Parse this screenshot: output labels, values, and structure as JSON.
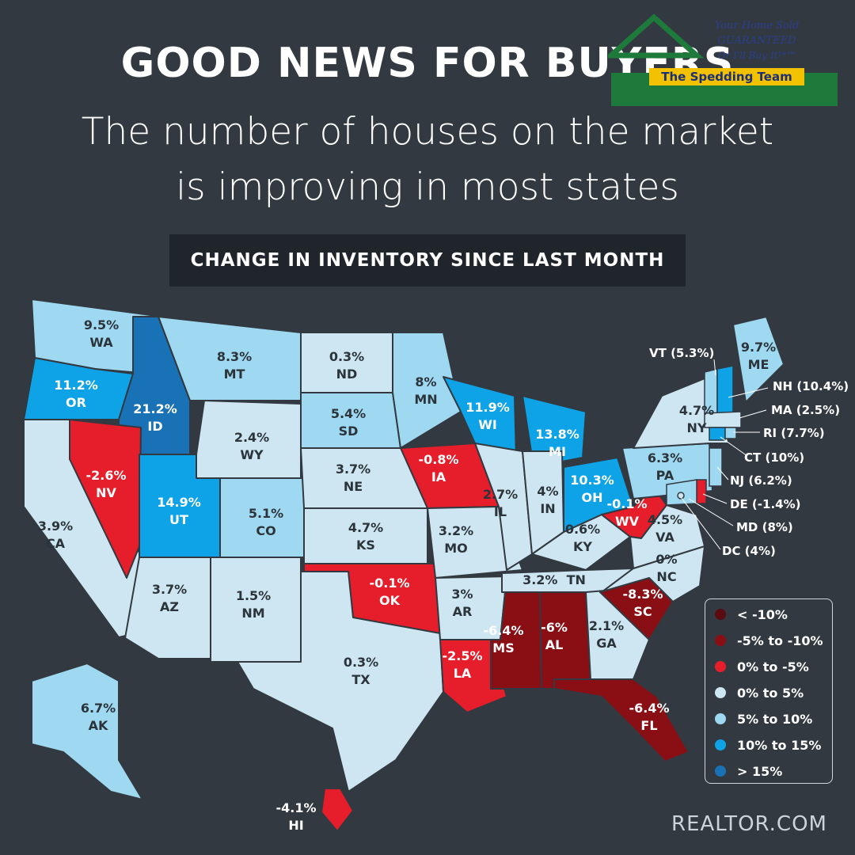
{
  "header": {
    "title": "GOOD NEWS FOR BUYERS",
    "subtitle_line1": "The number of houses on the market",
    "subtitle_line2": "is improving in most states"
  },
  "banner": {
    "text": "CHANGE IN INVENTORY SINCE LAST MONTH"
  },
  "logo": {
    "line1": "Your Home Sold",
    "line2": "GUARANTEED",
    "line3": "Or I'll Buy It!*™",
    "team": "The Spedding Team"
  },
  "colors": {
    "lt_minus10": "#5a0c10",
    "m5_to_m10": "#8a0f14",
    "z_to_m5": "#e61e2b",
    "z_to_5": "#cde6f2",
    "p5_to_10": "#9fd8f1",
    "p10_to_15": "#0ea2e6",
    "gt_15": "#1a72b6"
  },
  "legend": [
    {
      "label": "< -10%",
      "color": "#5a0c10"
    },
    {
      "label": "-5% to -10%",
      "color": "#8a0f14"
    },
    {
      "label": "0% to -5%",
      "color": "#e61e2b"
    },
    {
      "label": "0% to 5%",
      "color": "#cde6f2"
    },
    {
      "label": "5% to 10%",
      "color": "#9fd8f1"
    },
    {
      "label": "10% to 15%",
      "color": "#0ea2e6"
    },
    {
      "label": "> 15%",
      "color": "#1a72b6"
    }
  ],
  "states": {
    "WA": {
      "value": "9.5%",
      "abbr": "WA"
    },
    "OR": {
      "value": "11.2%",
      "abbr": "OR"
    },
    "CA": {
      "value": "3.9%",
      "abbr": "CA"
    },
    "ID": {
      "value": "21.2%",
      "abbr": "ID"
    },
    "NV": {
      "value": "-2.6%",
      "abbr": "NV"
    },
    "MT": {
      "value": "8.3%",
      "abbr": "MT"
    },
    "WY": {
      "value": "2.4%",
      "abbr": "WY"
    },
    "UT": {
      "value": "14.9%",
      "abbr": "UT"
    },
    "AZ": {
      "value": "3.7%",
      "abbr": "AZ"
    },
    "CO": {
      "value": "5.1%",
      "abbr": "CO"
    },
    "NM": {
      "value": "1.5%",
      "abbr": "NM"
    },
    "ND": {
      "value": "0.3%",
      "abbr": "ND"
    },
    "SD": {
      "value": "5.4%",
      "abbr": "SD"
    },
    "NE": {
      "value": "3.7%",
      "abbr": "NE"
    },
    "KS": {
      "value": "4.7%",
      "abbr": "KS"
    },
    "OK": {
      "value": "-0.1%",
      "abbr": "OK"
    },
    "TX": {
      "value": "0.3%",
      "abbr": "TX"
    },
    "MN": {
      "value": "8%",
      "abbr": "MN"
    },
    "IA": {
      "value": "-0.8%",
      "abbr": "IA"
    },
    "MO": {
      "value": "3.2%",
      "abbr": "MO"
    },
    "AR": {
      "value": "3%",
      "abbr": "AR"
    },
    "LA": {
      "value": "-2.5%",
      "abbr": "LA"
    },
    "WI": {
      "value": "11.9%",
      "abbr": "WI"
    },
    "IL": {
      "value": "2.7%",
      "abbr": "IL"
    },
    "MS": {
      "value": "-6.4%",
      "abbr": "MS"
    },
    "MI": {
      "value": "13.8%",
      "abbr": "MI"
    },
    "IN": {
      "value": "4%",
      "abbr": "IN"
    },
    "KY": {
      "value": "0.6%",
      "abbr": "KY"
    },
    "TN": {
      "value": "3.2%",
      "abbr": "TN"
    },
    "AL": {
      "value": "-6%",
      "abbr": "AL"
    },
    "OH": {
      "value": "10.3%",
      "abbr": "OH"
    },
    "WV": {
      "value": "-0.1%",
      "abbr": "WV"
    },
    "GA": {
      "value": "2.1%",
      "abbr": "GA"
    },
    "FL": {
      "value": "-6.4%",
      "abbr": "FL"
    },
    "SC": {
      "value": "-8.3%",
      "abbr": "SC"
    },
    "NC": {
      "value": "0%",
      "abbr": "NC"
    },
    "VA": {
      "value": "4.5%",
      "abbr": "VA"
    },
    "PA": {
      "value": "6.3%",
      "abbr": "PA"
    },
    "NY": {
      "value": "4.7%",
      "abbr": "NY"
    },
    "ME": {
      "value": "9.7%",
      "abbr": "ME"
    },
    "AK": {
      "value": "6.7%",
      "abbr": "AK"
    },
    "HI": {
      "value": "-4.1%",
      "abbr": "HI"
    }
  },
  "callouts": {
    "VT": "VT (5.3%)",
    "NH": "NH (10.4%)",
    "MA": "MA (2.5%)",
    "RI": "RI (7.7%)",
    "CT": "CT (10%)",
    "NJ": "NJ (6.2%)",
    "DE": "DE (-1.4%)",
    "MD": "MD (8%)",
    "DC": "DC (4%)"
  },
  "footer": {
    "credit": "REALTOR.COM"
  }
}
